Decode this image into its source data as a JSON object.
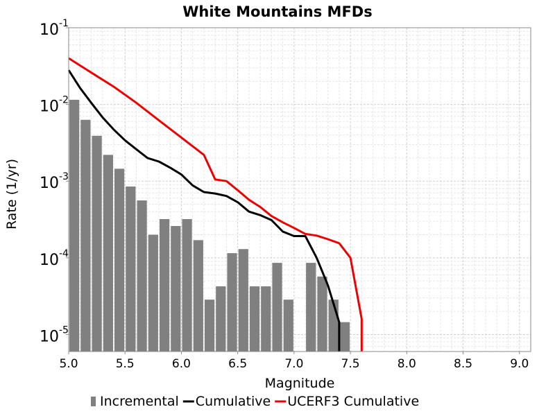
{
  "chart_data": {
    "type": "bar",
    "title": "White Mountains MFDs",
    "xlabel": "Magnitude",
    "ylabel": "Rate (1/yr)",
    "xlim": [
      5.0,
      9.1
    ],
    "ylim": [
      6e-06,
      0.1
    ],
    "yscale": "log",
    "grid": true,
    "legend_position": "bottom",
    "x_ticks": [
      "5.0",
      "5.5",
      "6.0",
      "6.5",
      "7.0",
      "7.5",
      "8.0",
      "8.5",
      "9.0"
    ],
    "y_ticks": [
      {
        "base": "10",
        "exp": "-1",
        "value": 0.1
      },
      {
        "base": "10",
        "exp": "-2",
        "value": 0.01
      },
      {
        "base": "10",
        "exp": "-3",
        "value": 0.001
      },
      {
        "base": "10",
        "exp": "-4",
        "value": 0.0001
      },
      {
        "base": "10",
        "exp": "-5",
        "value": 1e-05
      }
    ],
    "series": [
      {
        "name": "Incremental",
        "kind": "bar",
        "color": "#808080",
        "bar_width": 0.1,
        "x": [
          5.05,
          5.15,
          5.25,
          5.35,
          5.45,
          5.55,
          5.65,
          5.75,
          5.85,
          5.95,
          6.05,
          6.15,
          6.25,
          6.35,
          6.45,
          6.55,
          6.65,
          6.75,
          6.85,
          6.95,
          7.05,
          7.15,
          7.25,
          7.35,
          7.45
        ],
        "y": [
          0.0115,
          0.0063,
          0.0039,
          0.0022,
          0.00145,
          0.00085,
          0.00056,
          0.0002,
          0.00032,
          0.00026,
          0.00032,
          0.00017,
          2.85e-05,
          4.25e-05,
          0.000115,
          0.00013,
          4.25e-05,
          4.25e-05,
          8.6e-05,
          2.85e-05,
          null,
          8.6e-05,
          5.7e-05,
          2.85e-05,
          1.45e-05
        ]
      },
      {
        "name": "Cumulative",
        "kind": "line",
        "color": "#000000",
        "x": [
          5.0,
          5.1,
          5.2,
          5.3,
          5.4,
          5.5,
          5.6,
          5.7,
          5.8,
          5.9,
          6.0,
          6.1,
          6.2,
          6.3,
          6.4,
          6.5,
          6.6,
          6.7,
          6.8,
          6.9,
          7.0,
          7.1,
          7.2,
          7.3,
          7.4,
          7.4
        ],
        "y": [
          0.028,
          0.0165,
          0.0105,
          0.0068,
          0.0047,
          0.0034,
          0.0026,
          0.002,
          0.0018,
          0.0015,
          0.00122,
          0.00088,
          0.00072,
          0.00069,
          0.00064,
          0.00053,
          0.0004,
          0.00036,
          0.00031,
          0.00022,
          0.000192,
          0.000192,
          0.0001,
          4.4e-05,
          1.45e-05,
          5e-06
        ]
      },
      {
        "name": "UCERF3 Cumulative",
        "kind": "line",
        "color": "#ee0000",
        "x": [
          5.0,
          5.2,
          5.4,
          5.6,
          5.8,
          6.0,
          6.2,
          6.3,
          6.4,
          6.5,
          6.6,
          6.7,
          6.8,
          6.9,
          7.0,
          7.1,
          7.2,
          7.3,
          7.4,
          7.5,
          7.6,
          7.6
        ],
        "y": [
          0.04,
          0.026,
          0.017,
          0.0105,
          0.0062,
          0.0037,
          0.0022,
          0.00105,
          0.001,
          0.00076,
          0.00057,
          0.00046,
          0.00035,
          0.00029,
          0.000245,
          0.000205,
          0.000195,
          0.000175,
          0.000155,
          0.0001,
          1.6e-05,
          5e-06
        ]
      }
    ]
  }
}
